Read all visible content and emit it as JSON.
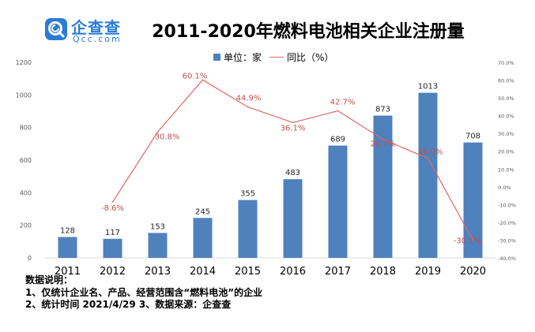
{
  "logo": {
    "name_cn": "企查查",
    "name_en": "Qcc.com"
  },
  "chart_data": {
    "type": "bar",
    "title": "2011-2020年燃料电池相关企业注册量",
    "categories": [
      "2011",
      "2012",
      "2013",
      "2014",
      "2015",
      "2016",
      "2017",
      "2018",
      "2019",
      "2020"
    ],
    "series": [
      {
        "name": "单位：家",
        "kind": "bar",
        "axis": "left",
        "values": [
          128,
          117,
          153,
          245,
          355,
          483,
          689,
          873,
          1013,
          708
        ],
        "labels": [
          "128",
          "117",
          "153",
          "245",
          "355",
          "483",
          "689",
          "873",
          "1013",
          "708"
        ]
      },
      {
        "name": "同比（%）",
        "kind": "line",
        "axis": "right",
        "values": [
          null,
          -8.6,
          30.8,
          60.1,
          44.9,
          36.1,
          42.7,
          26.7,
          16.0,
          -30.1
        ],
        "labels": [
          null,
          "-8.6%",
          "30.8%",
          "60.1%",
          "44.9%",
          "36.1%",
          "42.7%",
          "26.7%",
          "16.0%",
          "-30.1%"
        ]
      }
    ],
    "ylim": [
      0,
      1200
    ],
    "yticks": [
      "0",
      "200",
      "400",
      "600",
      "800",
      "1000",
      "1200"
    ],
    "y2lim": [
      -40,
      70
    ],
    "y2ticks": [
      "-40.0%",
      "-30.0%",
      "-20.0%",
      "-10.0%",
      "0.0%",
      "10.0%",
      "20.0%",
      "30.0%",
      "40.0%",
      "50.0%",
      "60.0%",
      "70.0%"
    ],
    "legend_position": "top-center",
    "grid": false
  },
  "legend": {
    "bar_label": "单位：家",
    "line_label": "同比（%）"
  },
  "notes": {
    "heading": "数据说明：",
    "line1": "1、仅统计企业名、产品、经营范围含“燃料电池”的企业",
    "line2": "2、统计时间 2021/4/29    3、数据来源：企查查"
  },
  "colors": {
    "bar": "#4f81bd",
    "line": "#e06666",
    "label_line": "#c0504d",
    "brand": "#2b7bd9"
  }
}
